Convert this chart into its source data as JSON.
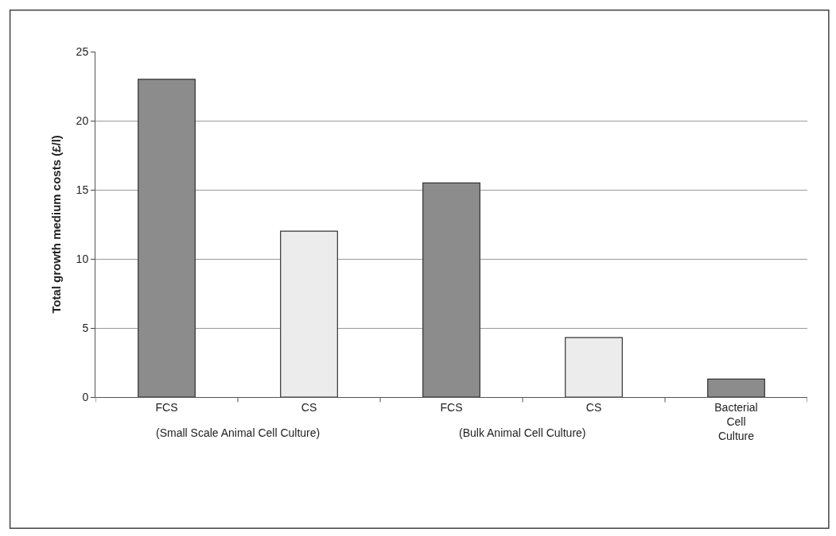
{
  "chart_data": {
    "type": "bar",
    "ylabel": "Total growth medium costs (£/l)",
    "categories": [
      "FCS",
      "CS",
      "FCS",
      "CS",
      "Bacterial Cell Culture"
    ],
    "values": [
      23,
      12,
      15.5,
      4.3,
      1.3
    ],
    "colors": [
      "#8c8c8c",
      "#ececec",
      "#8c8c8c",
      "#ececec",
      "#8c8c8c"
    ],
    "ylim": [
      0,
      25
    ],
    "yticks": [
      0,
      5,
      10,
      15,
      20,
      25
    ],
    "grid": "y",
    "annotations": [
      "(Small Scale Animal Cell Culture)",
      "(Bulk Animal Cell Culture)"
    ]
  }
}
